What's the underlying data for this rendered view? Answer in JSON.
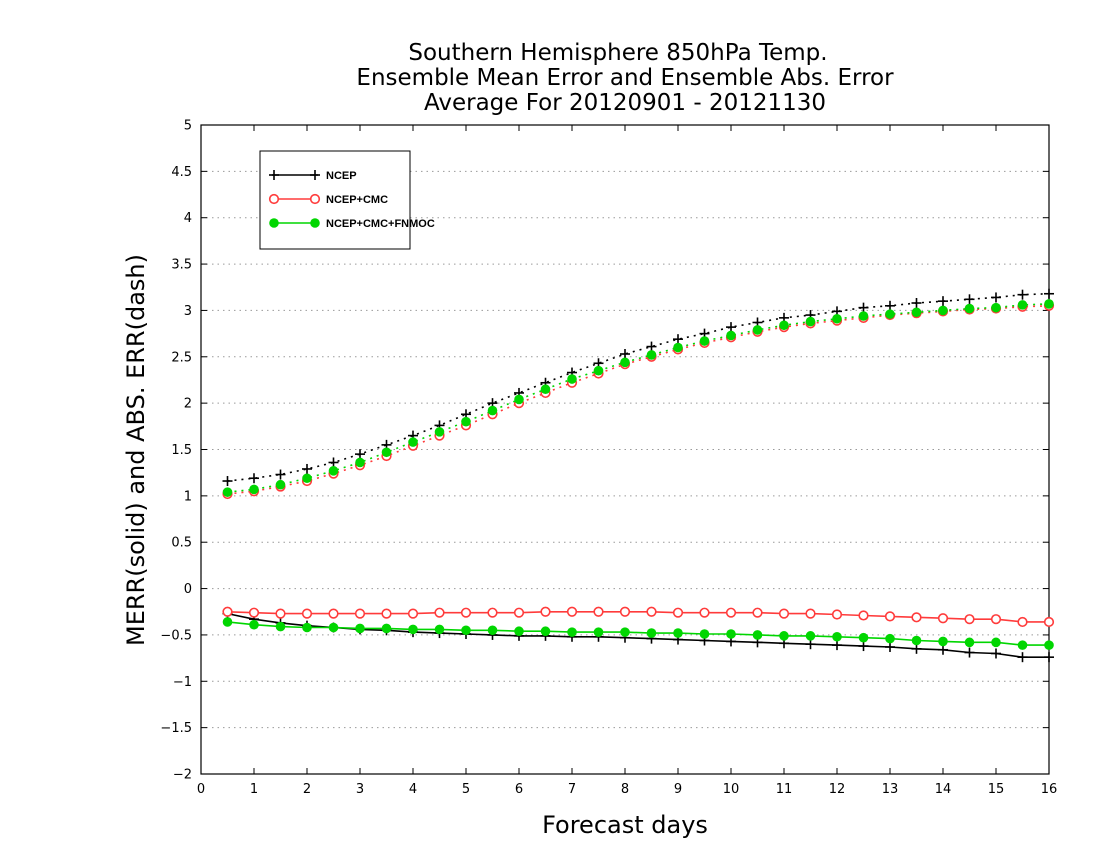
{
  "chart_data": {
    "type": "line",
    "title": [
      "Southern Hemisphere 850hPa Temp.",
      "Ensemble Mean Error and Ensemble Abs. Error",
      "Average For 20120901 - 20121130"
    ],
    "xlabel": "Forecast days",
    "ylabel": "MERR(solid) and ABS. ERR(dash)",
    "xlim": [
      0,
      16
    ],
    "ylim": [
      -2,
      5
    ],
    "xticks": [
      0,
      1,
      2,
      3,
      4,
      5,
      6,
      7,
      8,
      9,
      10,
      11,
      12,
      13,
      14,
      15,
      16
    ],
    "yticks": [
      -2,
      -1.5,
      -1,
      -0.5,
      0,
      0.5,
      1,
      1.5,
      2,
      2.5,
      3,
      3.5,
      4,
      4.5,
      5
    ],
    "ytick_labels": [
      "−2",
      "−1.5",
      "−1",
      "−0.5",
      "0",
      "0.5",
      "1",
      "1.5",
      "2",
      "2.5",
      "3",
      "3.5",
      "4",
      "4.5",
      "5"
    ],
    "grid": "horizontal dotted",
    "legend_position": "top-left",
    "x": [
      0.5,
      1,
      1.5,
      2,
      2.5,
      3,
      3.5,
      4,
      4.5,
      5,
      5.5,
      6,
      6.5,
      7,
      7.5,
      8,
      8.5,
      9,
      9.5,
      10,
      10.5,
      11,
      11.5,
      12,
      12.5,
      13,
      13.5,
      14,
      14.5,
      15,
      15.5,
      16
    ],
    "series": [
      {
        "name": "NCEP",
        "color": "#000000",
        "marker": "plus",
        "mean_error": [
          -0.27,
          -0.33,
          -0.37,
          -0.4,
          -0.42,
          -0.44,
          -0.45,
          -0.47,
          -0.48,
          -0.49,
          -0.5,
          -0.51,
          -0.51,
          -0.52,
          -0.52,
          -0.53,
          -0.54,
          -0.55,
          -0.56,
          -0.57,
          -0.58,
          -0.59,
          -0.6,
          -0.61,
          -0.62,
          -0.63,
          -0.65,
          -0.66,
          -0.69,
          -0.7,
          -0.74,
          -0.74
        ],
        "abs_error": [
          1.16,
          1.19,
          1.23,
          1.29,
          1.36,
          1.45,
          1.55,
          1.65,
          1.76,
          1.88,
          2.0,
          2.11,
          2.22,
          2.33,
          2.43,
          2.53,
          2.61,
          2.69,
          2.75,
          2.82,
          2.87,
          2.92,
          2.95,
          2.99,
          3.03,
          3.05,
          3.08,
          3.1,
          3.12,
          3.14,
          3.17,
          3.18
        ]
      },
      {
        "name": "NCEP+CMC",
        "color": "#ff3b3b",
        "marker": "open-circle",
        "mean_error": [
          -0.25,
          -0.26,
          -0.27,
          -0.27,
          -0.27,
          -0.27,
          -0.27,
          -0.27,
          -0.26,
          -0.26,
          -0.26,
          -0.26,
          -0.25,
          -0.25,
          -0.25,
          -0.25,
          -0.25,
          -0.26,
          -0.26,
          -0.26,
          -0.26,
          -0.27,
          -0.27,
          -0.28,
          -0.29,
          -0.3,
          -0.31,
          -0.32,
          -0.33,
          -0.33,
          -0.36,
          -0.36
        ],
        "abs_error": [
          1.02,
          1.05,
          1.1,
          1.16,
          1.24,
          1.33,
          1.43,
          1.54,
          1.65,
          1.76,
          1.88,
          2.0,
          2.11,
          2.22,
          2.32,
          2.42,
          2.5,
          2.58,
          2.65,
          2.71,
          2.77,
          2.82,
          2.86,
          2.89,
          2.92,
          2.95,
          2.97,
          2.99,
          3.01,
          3.02,
          3.04,
          3.05
        ]
      },
      {
        "name": "NCEP+CMC+FNMOC",
        "color": "#00d600",
        "marker": "filled-circle",
        "mean_error": [
          -0.36,
          -0.39,
          -0.41,
          -0.42,
          -0.42,
          -0.43,
          -0.43,
          -0.44,
          -0.44,
          -0.45,
          -0.45,
          -0.46,
          -0.46,
          -0.47,
          -0.47,
          -0.47,
          -0.48,
          -0.48,
          -0.49,
          -0.49,
          -0.5,
          -0.51,
          -0.51,
          -0.52,
          -0.53,
          -0.54,
          -0.56,
          -0.57,
          -0.58,
          -0.58,
          -0.61,
          -0.61
        ],
        "abs_error": [
          1.04,
          1.07,
          1.12,
          1.19,
          1.27,
          1.36,
          1.47,
          1.58,
          1.69,
          1.8,
          1.92,
          2.04,
          2.15,
          2.26,
          2.35,
          2.44,
          2.52,
          2.6,
          2.67,
          2.73,
          2.79,
          2.84,
          2.88,
          2.91,
          2.94,
          2.96,
          2.98,
          3.0,
          3.02,
          3.03,
          3.06,
          3.07
        ]
      }
    ]
  }
}
